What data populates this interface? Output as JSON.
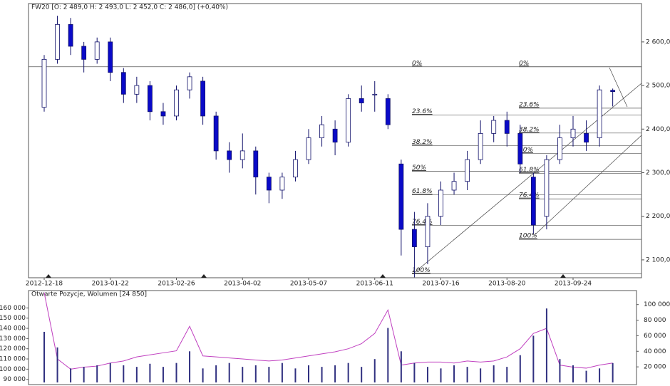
{
  "chart_data": [
    {
      "type": "candlestick",
      "title": "FW20 [O: 2 489,0  H: 2 493,0  L: 2 452,0  C: 2 486,0] (+0,40%)",
      "categories": [
        "2012-12-18",
        null,
        null,
        null,
        null,
        "2013-01-22",
        null,
        null,
        null,
        null,
        "2013-02-26",
        null,
        null,
        null,
        null,
        "2013-04-02",
        null,
        null,
        null,
        null,
        "2013-05-07",
        null,
        null,
        null,
        null,
        "2013-06-11",
        null,
        null,
        null,
        null,
        "2013-07-16",
        null,
        null,
        null,
        null,
        "2013-08-20",
        null,
        null,
        null,
        null,
        "2013-09-24",
        null,
        null,
        null
      ],
      "open": [
        2450,
        2560,
        2640,
        2590,
        2560,
        2600,
        2530,
        2480,
        2500,
        2440,
        2430,
        2490,
        2510,
        2430,
        2350,
        2330,
        2350,
        2290,
        2260,
        2290,
        2330,
        2380,
        2400,
        2370,
        2470,
        2480,
        2470,
        2320,
        2170,
        2130,
        2200,
        2260,
        2280,
        2330,
        2390,
        2420,
        2390,
        2290,
        2200,
        2330,
        2380,
        2390,
        2380,
        2489
      ],
      "high": [
        2570,
        2660,
        2655,
        2600,
        2610,
        2610,
        2540,
        2520,
        2510,
        2460,
        2500,
        2530,
        2520,
        2440,
        2370,
        2390,
        2360,
        2300,
        2300,
        2350,
        2400,
        2430,
        2420,
        2480,
        2500,
        2510,
        2480,
        2330,
        2210,
        2230,
        2280,
        2300,
        2350,
        2420,
        2430,
        2440,
        2410,
        2300,
        2340,
        2410,
        2430,
        2420,
        2500,
        2493
      ],
      "low": [
        2440,
        2550,
        2570,
        2530,
        2550,
        2510,
        2460,
        2460,
        2420,
        2410,
        2420,
        2470,
        2410,
        2330,
        2300,
        2310,
        2250,
        2230,
        2240,
        2280,
        2320,
        2360,
        2340,
        2360,
        2440,
        2440,
        2400,
        2110,
        2060,
        2090,
        2180,
        2250,
        2260,
        2320,
        2370,
        2360,
        2300,
        2160,
        2170,
        2320,
        2360,
        2350,
        2360,
        2452
      ],
      "close": [
        2560,
        2640,
        2590,
        2560,
        2600,
        2530,
        2480,
        2500,
        2440,
        2430,
        2490,
        2520,
        2430,
        2350,
        2330,
        2350,
        2290,
        2260,
        2290,
        2330,
        2380,
        2410,
        2370,
        2470,
        2460,
        2480,
        2410,
        2170,
        2130,
        2200,
        2260,
        2280,
        2330,
        2390,
        2420,
        2390,
        2320,
        2180,
        2330,
        2380,
        2400,
        2370,
        2490,
        2486
      ],
      "color_up": "#ffffff",
      "color_down": "#0a0ac8",
      "ylim": [
        2059,
        2688
      ],
      "yticks": [
        {
          "value": 2100,
          "label": "2 100,0"
        },
        {
          "value": 2200,
          "label": "2 200,0"
        },
        {
          "value": 2300,
          "label": "2 300,0"
        },
        {
          "value": 2400,
          "label": "2 400,0"
        },
        {
          "value": 2500,
          "label": "2 500,0"
        },
        {
          "value": 2600,
          "label": "2 600,0"
        }
      ],
      "fib_labels": [
        "0%",
        "23.6%",
        "38.2%",
        "50%",
        "61.8%",
        "76.4%",
        "100%"
      ],
      "fib_levels": [
        [
          2543,
          2432,
          2362,
          2303,
          2249,
          2179,
          2068
        ],
        [
          2543,
          2448,
          2391,
          2344,
          2298,
          2240,
          2147
        ]
      ]
    },
    {
      "type": "bar_line",
      "title": "Otwarte Pozycje, Wolumen [24 850]",
      "series": [
        {
          "color": "#c040c0",
          "values": [
            175000,
            110000,
            100000,
            102000,
            103000,
            106000,
            108000,
            112000,
            114000,
            116000,
            118000,
            142000,
            113000,
            112000,
            111000,
            110000,
            109000,
            108000,
            109000,
            111000,
            113000,
            115000,
            117000,
            120000,
            125000,
            135000,
            158000,
            104000,
            106000,
            107000,
            107000,
            106000,
            108000,
            107000,
            108000,
            112000,
            120000,
            135000,
            140000,
            104000,
            102000,
            101000,
            104000,
            106000
          ]
        },
        {
          "color": "#303080",
          "axis": "y2",
          "values": [
            65000,
            45000,
            18000,
            20000,
            22000,
            25000,
            22000,
            20000,
            24000,
            20000,
            25000,
            40000,
            18000,
            22000,
            25000,
            20000,
            22000,
            20000,
            25000,
            18000,
            22000,
            20000,
            22000,
            25000,
            20000,
            30000,
            70000,
            40000,
            25000,
            20000,
            18000,
            22000,
            20000,
            18000,
            22000,
            20000,
            35000,
            60000,
            95000,
            30000,
            22000,
            15000,
            18000,
            24850
          ]
        }
      ],
      "ylim": [
        87000,
        177000
      ],
      "yticks": [
        {
          "value": 90000,
          "label": "90 000"
        },
        {
          "value": 100000,
          "label": "100 000"
        },
        {
          "value": 110000,
          "label": "110 000"
        },
        {
          "value": 120000,
          "label": "120 000"
        },
        {
          "value": 130000,
          "label": "130 000"
        },
        {
          "value": 140000,
          "label": "140 000"
        },
        {
          "value": 150000,
          "label": "150 000"
        },
        {
          "value": 160000,
          "label": "160 000"
        }
      ],
      "y2lim": [
        0,
        118000
      ],
      "y2ticks": [
        {
          "value": 20000,
          "label": "20 000"
        },
        {
          "value": 40000,
          "label": "40 000"
        },
        {
          "value": 60000,
          "label": "60 000"
        },
        {
          "value": 80000,
          "label": "80 000"
        },
        {
          "value": 100000,
          "label": "100 000"
        }
      ]
    }
  ]
}
